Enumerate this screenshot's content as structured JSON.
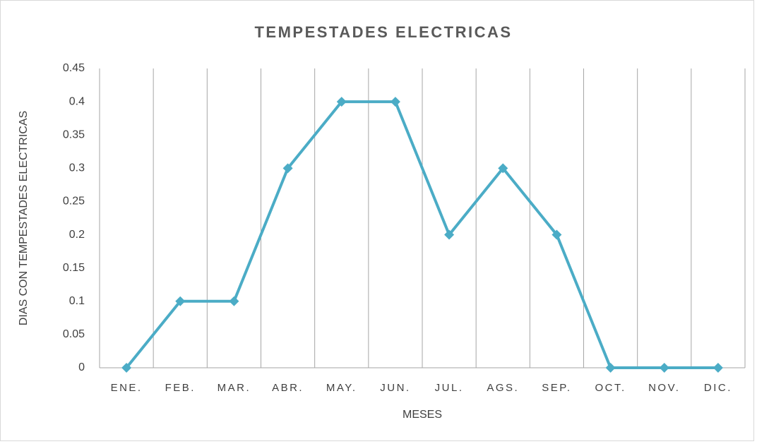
{
  "chart_data": {
    "type": "line",
    "title": "TEMPESTADES ELECTRICAS",
    "x_label": "MESES",
    "y_label": "DIAS CON TEMPESTADES ELECTRICAS",
    "categories": [
      "ENE.",
      "FEB.",
      "MAR.",
      "ABR.",
      "MAY.",
      "JUN.",
      "JUL.",
      "AGS.",
      "SEP.",
      "OCT.",
      "NOV.",
      "DIC."
    ],
    "values": [
      0,
      0.1,
      0.1,
      0.3,
      0.4,
      0.4,
      0.2,
      0.3,
      0.2,
      0,
      0,
      0
    ],
    "color": "#4bacc6",
    "marker": "diamond",
    "ylim": [
      0,
      0.45
    ],
    "yticks": [
      0,
      0.05,
      0.1,
      0.15,
      0.2,
      0.25,
      0.3,
      0.35,
      0.4,
      0.45
    ],
    "xgrid": true
  }
}
